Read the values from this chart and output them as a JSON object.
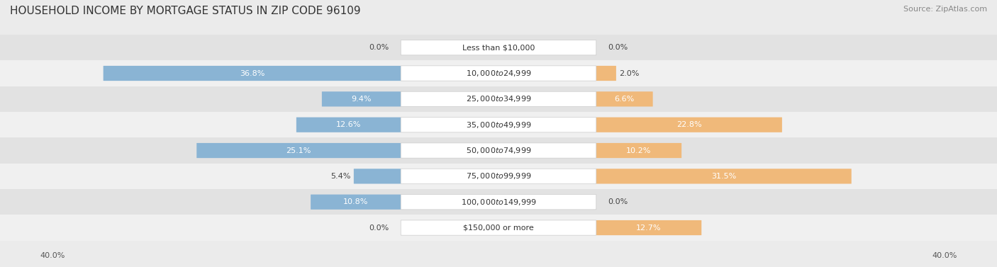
{
  "title": "HOUSEHOLD INCOME BY MORTGAGE STATUS IN ZIP CODE 96109",
  "source": "Source: ZipAtlas.com",
  "categories": [
    "Less than $10,000",
    "$10,000 to $24,999",
    "$25,000 to $34,999",
    "$35,000 to $49,999",
    "$50,000 to $74,999",
    "$75,000 to $99,999",
    "$100,000 to $149,999",
    "$150,000 or more"
  ],
  "without_mortgage": [
    0.0,
    36.8,
    9.4,
    12.6,
    25.1,
    5.4,
    10.8,
    0.0
  ],
  "with_mortgage": [
    0.0,
    2.0,
    6.6,
    22.8,
    10.2,
    31.5,
    0.0,
    12.7
  ],
  "color_without": "#8ab4d4",
  "color_with": "#f0b97a",
  "axis_limit": 40.0,
  "background_color": "#ebebeb",
  "row_bg_even": "#e2e2e2",
  "row_bg_odd": "#f0f0f0",
  "title_fontsize": 11,
  "label_fontsize": 8,
  "cat_fontsize": 8,
  "source_fontsize": 8,
  "legend_fontsize": 9,
  "axis_label_fontsize": 8
}
